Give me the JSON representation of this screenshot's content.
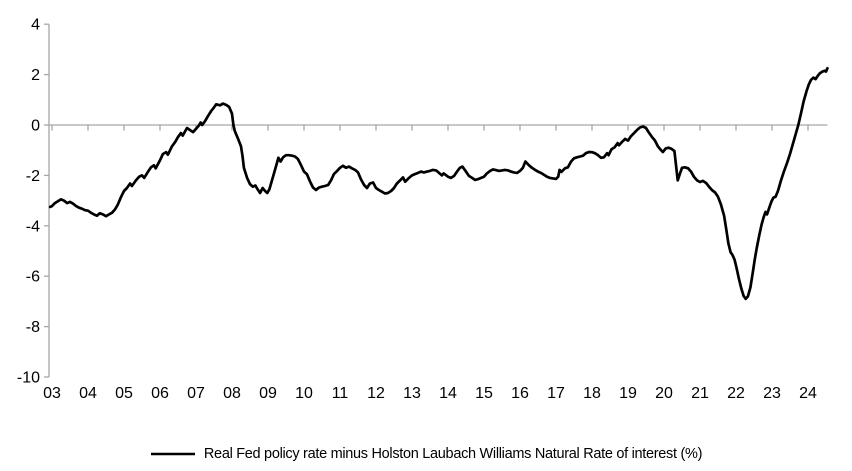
{
  "chart_data": {
    "type": "line",
    "title": "",
    "xlabel": "",
    "ylabel": "",
    "x_axis_unit": "year (20xx)",
    "y_axis_unit": "%",
    "ylim": [
      -10,
      4
    ],
    "grid": false,
    "legend_position": "bottom",
    "zero_line": true,
    "x_tick_labels": [
      "03",
      "04",
      "05",
      "06",
      "07",
      "08",
      "09",
      "10",
      "11",
      "12",
      "13",
      "14",
      "15",
      "16",
      "17",
      "18",
      "19",
      "20",
      "21",
      "22",
      "23",
      "24"
    ],
    "x_tick_values": [
      3,
      4,
      5,
      6,
      7,
      8,
      9,
      10,
      11,
      12,
      13,
      14,
      15,
      16,
      17,
      18,
      19,
      20,
      21,
      22,
      23,
      24
    ],
    "y_tick_labels": [
      "4",
      "2",
      "0",
      "-2",
      "-4",
      "-6",
      "-8",
      "-10"
    ],
    "y_tick_values": [
      4,
      2,
      0,
      -2,
      -4,
      -6,
      -8,
      -10
    ],
    "series": [
      {
        "name": "Real Fed policy rate minus Holston Laubach Williams Natural Rate of interest (%)",
        "color": "#000000",
        "points": [
          [
            2.95,
            -3.25
          ],
          [
            3.0,
            -3.22
          ],
          [
            3.08,
            -3.1
          ],
          [
            3.17,
            -3.02
          ],
          [
            3.25,
            -2.95
          ],
          [
            3.33,
            -3.0
          ],
          [
            3.42,
            -3.1
          ],
          [
            3.5,
            -3.05
          ],
          [
            3.58,
            -3.12
          ],
          [
            3.67,
            -3.22
          ],
          [
            3.75,
            -3.28
          ],
          [
            3.83,
            -3.32
          ],
          [
            3.92,
            -3.38
          ],
          [
            4.0,
            -3.4
          ],
          [
            4.08,
            -3.48
          ],
          [
            4.17,
            -3.55
          ],
          [
            4.25,
            -3.6
          ],
          [
            4.33,
            -3.5
          ],
          [
            4.42,
            -3.55
          ],
          [
            4.5,
            -3.62
          ],
          [
            4.58,
            -3.55
          ],
          [
            4.67,
            -3.48
          ],
          [
            4.75,
            -3.35
          ],
          [
            4.83,
            -3.15
          ],
          [
            4.92,
            -2.85
          ],
          [
            5.0,
            -2.62
          ],
          [
            5.08,
            -2.5
          ],
          [
            5.17,
            -2.32
          ],
          [
            5.22,
            -2.42
          ],
          [
            5.33,
            -2.2
          ],
          [
            5.42,
            -2.05
          ],
          [
            5.5,
            -2.0
          ],
          [
            5.56,
            -2.1
          ],
          [
            5.67,
            -1.85
          ],
          [
            5.75,
            -1.68
          ],
          [
            5.83,
            -1.6
          ],
          [
            5.88,
            -1.72
          ],
          [
            6.0,
            -1.4
          ],
          [
            6.08,
            -1.15
          ],
          [
            6.17,
            -1.08
          ],
          [
            6.22,
            -1.18
          ],
          [
            6.33,
            -0.85
          ],
          [
            6.42,
            -0.68
          ],
          [
            6.5,
            -0.48
          ],
          [
            6.58,
            -0.32
          ],
          [
            6.63,
            -0.42
          ],
          [
            6.75,
            -0.12
          ],
          [
            6.83,
            -0.2
          ],
          [
            6.92,
            -0.28
          ],
          [
            7.0,
            -0.15
          ],
          [
            7.08,
            -0.02
          ],
          [
            7.13,
            0.1
          ],
          [
            7.17,
            0.0
          ],
          [
            7.25,
            0.15
          ],
          [
            7.33,
            0.35
          ],
          [
            7.42,
            0.55
          ],
          [
            7.5,
            0.7
          ],
          [
            7.56,
            0.82
          ],
          [
            7.67,
            0.78
          ],
          [
            7.75,
            0.85
          ],
          [
            7.83,
            0.8
          ],
          [
            7.92,
            0.72
          ],
          [
            8.0,
            0.45
          ],
          [
            8.04,
            0.0
          ],
          [
            8.08,
            -0.25
          ],
          [
            8.17,
            -0.55
          ],
          [
            8.25,
            -0.85
          ],
          [
            8.29,
            -1.2
          ],
          [
            8.33,
            -1.7
          ],
          [
            8.42,
            -2.1
          ],
          [
            8.5,
            -2.35
          ],
          [
            8.58,
            -2.45
          ],
          [
            8.65,
            -2.4
          ],
          [
            8.71,
            -2.55
          ],
          [
            8.78,
            -2.7
          ],
          [
            8.85,
            -2.5
          ],
          [
            8.92,
            -2.62
          ],
          [
            8.98,
            -2.7
          ],
          [
            9.04,
            -2.55
          ],
          [
            9.13,
            -2.1
          ],
          [
            9.21,
            -1.7
          ],
          [
            9.29,
            -1.3
          ],
          [
            9.35,
            -1.45
          ],
          [
            9.42,
            -1.28
          ],
          [
            9.5,
            -1.2
          ],
          [
            9.58,
            -1.2
          ],
          [
            9.67,
            -1.22
          ],
          [
            9.75,
            -1.25
          ],
          [
            9.83,
            -1.35
          ],
          [
            9.92,
            -1.6
          ],
          [
            10.0,
            -1.85
          ],
          [
            10.08,
            -1.95
          ],
          [
            10.17,
            -2.25
          ],
          [
            10.25,
            -2.48
          ],
          [
            10.33,
            -2.58
          ],
          [
            10.42,
            -2.48
          ],
          [
            10.5,
            -2.45
          ],
          [
            10.58,
            -2.42
          ],
          [
            10.67,
            -2.38
          ],
          [
            10.75,
            -2.2
          ],
          [
            10.83,
            -1.95
          ],
          [
            10.92,
            -1.82
          ],
          [
            11.0,
            -1.7
          ],
          [
            11.08,
            -1.62
          ],
          [
            11.17,
            -1.7
          ],
          [
            11.25,
            -1.65
          ],
          [
            11.33,
            -1.72
          ],
          [
            11.42,
            -1.78
          ],
          [
            11.5,
            -1.88
          ],
          [
            11.58,
            -2.15
          ],
          [
            11.67,
            -2.38
          ],
          [
            11.75,
            -2.5
          ],
          [
            11.83,
            -2.32
          ],
          [
            11.92,
            -2.28
          ],
          [
            12.0,
            -2.5
          ],
          [
            12.08,
            -2.58
          ],
          [
            12.17,
            -2.65
          ],
          [
            12.25,
            -2.72
          ],
          [
            12.33,
            -2.7
          ],
          [
            12.42,
            -2.62
          ],
          [
            12.5,
            -2.5
          ],
          [
            12.58,
            -2.32
          ],
          [
            12.67,
            -2.2
          ],
          [
            12.75,
            -2.08
          ],
          [
            12.81,
            -2.25
          ],
          [
            12.9,
            -2.12
          ],
          [
            13.0,
            -2.0
          ],
          [
            13.08,
            -1.95
          ],
          [
            13.17,
            -1.9
          ],
          [
            13.25,
            -1.85
          ],
          [
            13.33,
            -1.88
          ],
          [
            13.42,
            -1.85
          ],
          [
            13.5,
            -1.82
          ],
          [
            13.58,
            -1.78
          ],
          [
            13.67,
            -1.8
          ],
          [
            13.75,
            -1.9
          ],
          [
            13.83,
            -2.0
          ],
          [
            13.88,
            -1.92
          ],
          [
            14.0,
            -2.05
          ],
          [
            14.08,
            -2.1
          ],
          [
            14.17,
            -2.02
          ],
          [
            14.25,
            -1.85
          ],
          [
            14.33,
            -1.7
          ],
          [
            14.4,
            -1.65
          ],
          [
            14.5,
            -1.85
          ],
          [
            14.58,
            -2.02
          ],
          [
            14.67,
            -2.1
          ],
          [
            14.75,
            -2.18
          ],
          [
            14.83,
            -2.15
          ],
          [
            14.92,
            -2.1
          ],
          [
            15.0,
            -2.05
          ],
          [
            15.08,
            -1.92
          ],
          [
            15.17,
            -1.82
          ],
          [
            15.25,
            -1.76
          ],
          [
            15.33,
            -1.79
          ],
          [
            15.42,
            -1.82
          ],
          [
            15.5,
            -1.8
          ],
          [
            15.58,
            -1.78
          ],
          [
            15.67,
            -1.8
          ],
          [
            15.75,
            -1.85
          ],
          [
            15.83,
            -1.88
          ],
          [
            15.92,
            -1.9
          ],
          [
            16.0,
            -1.82
          ],
          [
            16.08,
            -1.7
          ],
          [
            16.15,
            -1.45
          ],
          [
            16.25,
            -1.6
          ],
          [
            16.33,
            -1.7
          ],
          [
            16.42,
            -1.78
          ],
          [
            16.5,
            -1.85
          ],
          [
            16.58,
            -1.9
          ],
          [
            16.67,
            -1.98
          ],
          [
            16.75,
            -2.05
          ],
          [
            16.83,
            -2.1
          ],
          [
            16.92,
            -2.12
          ],
          [
            17.0,
            -2.14
          ],
          [
            17.06,
            -2.05
          ],
          [
            17.1,
            -1.78
          ],
          [
            17.15,
            -1.86
          ],
          [
            17.25,
            -1.72
          ],
          [
            17.33,
            -1.68
          ],
          [
            17.42,
            -1.45
          ],
          [
            17.5,
            -1.32
          ],
          [
            17.58,
            -1.28
          ],
          [
            17.67,
            -1.25
          ],
          [
            17.75,
            -1.22
          ],
          [
            17.83,
            -1.12
          ],
          [
            17.92,
            -1.07
          ],
          [
            18.0,
            -1.08
          ],
          [
            18.08,
            -1.12
          ],
          [
            18.17,
            -1.2
          ],
          [
            18.25,
            -1.3
          ],
          [
            18.33,
            -1.28
          ],
          [
            18.42,
            -1.12
          ],
          [
            18.46,
            -1.2
          ],
          [
            18.54,
            -0.97
          ],
          [
            18.63,
            -0.88
          ],
          [
            18.71,
            -0.72
          ],
          [
            18.75,
            -0.8
          ],
          [
            18.83,
            -0.68
          ],
          [
            18.92,
            -0.55
          ],
          [
            19.0,
            -0.62
          ],
          [
            19.08,
            -0.45
          ],
          [
            19.17,
            -0.32
          ],
          [
            19.25,
            -0.2
          ],
          [
            19.33,
            -0.1
          ],
          [
            19.42,
            -0.06
          ],
          [
            19.5,
            -0.12
          ],
          [
            19.58,
            -0.3
          ],
          [
            19.67,
            -0.48
          ],
          [
            19.75,
            -0.62
          ],
          [
            19.83,
            -0.85
          ],
          [
            19.92,
            -1.0
          ],
          [
            19.97,
            -1.07
          ],
          [
            20.05,
            -0.93
          ],
          [
            20.13,
            -0.9
          ],
          [
            20.21,
            -0.95
          ],
          [
            20.29,
            -1.03
          ],
          [
            20.33,
            -1.55
          ],
          [
            20.38,
            -2.2
          ],
          [
            20.44,
            -1.95
          ],
          [
            20.5,
            -1.7
          ],
          [
            20.58,
            -1.68
          ],
          [
            20.67,
            -1.72
          ],
          [
            20.75,
            -1.85
          ],
          [
            20.83,
            -2.05
          ],
          [
            20.92,
            -2.2
          ],
          [
            21.0,
            -2.26
          ],
          [
            21.08,
            -2.22
          ],
          [
            21.17,
            -2.3
          ],
          [
            21.25,
            -2.45
          ],
          [
            21.33,
            -2.58
          ],
          [
            21.42,
            -2.68
          ],
          [
            21.5,
            -2.85
          ],
          [
            21.58,
            -3.15
          ],
          [
            21.67,
            -3.6
          ],
          [
            21.73,
            -4.15
          ],
          [
            21.79,
            -4.7
          ],
          [
            21.85,
            -5.05
          ],
          [
            21.9,
            -5.15
          ],
          [
            21.96,
            -5.35
          ],
          [
            22.02,
            -5.7
          ],
          [
            22.08,
            -6.1
          ],
          [
            22.15,
            -6.5
          ],
          [
            22.21,
            -6.78
          ],
          [
            22.27,
            -6.9
          ],
          [
            22.33,
            -6.8
          ],
          [
            22.4,
            -6.45
          ],
          [
            22.46,
            -5.9
          ],
          [
            22.52,
            -5.35
          ],
          [
            22.58,
            -4.85
          ],
          [
            22.65,
            -4.35
          ],
          [
            22.71,
            -3.95
          ],
          [
            22.77,
            -3.65
          ],
          [
            22.82,
            -3.45
          ],
          [
            22.86,
            -3.55
          ],
          [
            22.92,
            -3.3
          ],
          [
            22.98,
            -3.05
          ],
          [
            23.04,
            -2.88
          ],
          [
            23.1,
            -2.85
          ],
          [
            23.17,
            -2.6
          ],
          [
            23.25,
            -2.2
          ],
          [
            23.33,
            -1.85
          ],
          [
            23.42,
            -1.5
          ],
          [
            23.5,
            -1.15
          ],
          [
            23.58,
            -0.75
          ],
          [
            23.65,
            -0.4
          ],
          [
            23.73,
            0.0
          ],
          [
            23.81,
            0.5
          ],
          [
            23.88,
            0.95
          ],
          [
            23.96,
            1.35
          ],
          [
            24.02,
            1.6
          ],
          [
            24.08,
            1.78
          ],
          [
            24.15,
            1.88
          ],
          [
            24.21,
            1.82
          ],
          [
            24.27,
            1.95
          ],
          [
            24.33,
            2.05
          ],
          [
            24.4,
            2.12
          ],
          [
            24.46,
            2.15
          ],
          [
            24.5,
            2.12
          ],
          [
            24.54,
            2.25
          ]
        ]
      }
    ]
  },
  "legend": {
    "label": "Real Fed policy rate minus Holston Laubach Williams Natural Rate of interest (%)"
  },
  "colors": {
    "line": "#000000",
    "axis": "#a6a6a6",
    "text": "#000000",
    "background": "#ffffff"
  }
}
